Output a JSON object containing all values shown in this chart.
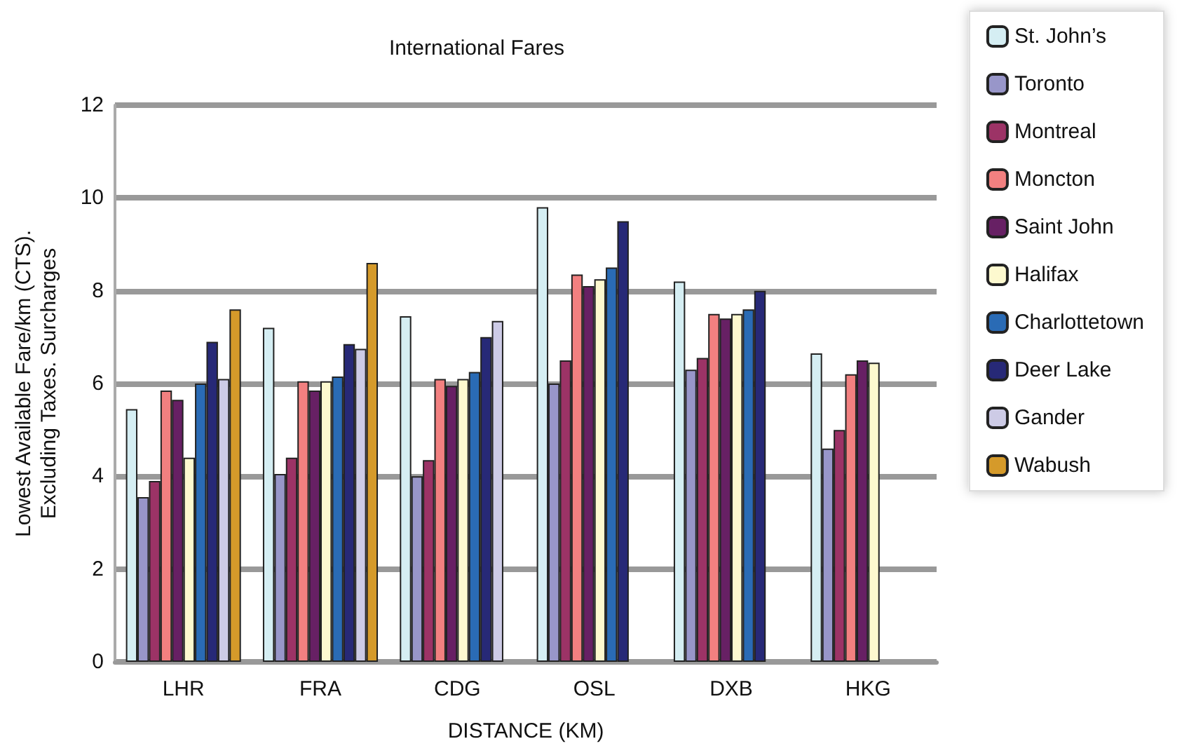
{
  "chart_data": {
    "type": "bar",
    "title": "International Fares",
    "xlabel": "DISTANCE (KM)",
    "ylabel": "Lowest Available Fare/km (CTS).\nExcluding Taxes. Surcharges",
    "categories": [
      "LHR",
      "FRA",
      "CDG",
      "OSL",
      "DXB",
      "HKG"
    ],
    "series": [
      {
        "name": "St. John’s",
        "color": "#d5eef3",
        "values": [
          5.45,
          7.2,
          7.45,
          9.8,
          8.2,
          6.65
        ]
      },
      {
        "name": "Toronto",
        "color": "#9896c9",
        "values": [
          3.55,
          4.05,
          4.0,
          6.0,
          6.3,
          4.6
        ]
      },
      {
        "name": "Montreal",
        "color": "#9c3366",
        "values": [
          3.9,
          4.4,
          4.35,
          6.5,
          6.55,
          5.0
        ]
      },
      {
        "name": "Moncton",
        "color": "#f28080",
        "values": [
          5.85,
          6.05,
          6.1,
          8.35,
          7.5,
          6.2
        ]
      },
      {
        "name": "Saint John",
        "color": "#672064",
        "values": [
          5.65,
          5.85,
          5.95,
          8.1,
          7.4,
          6.5
        ]
      },
      {
        "name": "Halifax",
        "color": "#fdf9cf",
        "values": [
          4.4,
          6.05,
          6.1,
          8.25,
          7.5,
          6.45
        ]
      },
      {
        "name": "Charlottetown",
        "color": "#2a6bb5",
        "values": [
          6.0,
          6.15,
          6.25,
          8.5,
          7.6,
          null
        ]
      },
      {
        "name": "Deer Lake",
        "color": "#272977",
        "values": [
          6.9,
          6.85,
          7.0,
          9.5,
          8.0,
          null
        ]
      },
      {
        "name": "Gander",
        "color": "#cdcbe6",
        "values": [
          6.1,
          6.75,
          7.35,
          null,
          null,
          null
        ]
      },
      {
        "name": "Wabush",
        "color": "#d59a2a",
        "values": [
          7.6,
          8.6,
          null,
          null,
          null,
          null
        ]
      }
    ],
    "ylim": [
      0,
      12
    ],
    "yticks": [
      0,
      2,
      4,
      6,
      8,
      10,
      12
    ],
    "grid": "y",
    "legend": "top right"
  }
}
